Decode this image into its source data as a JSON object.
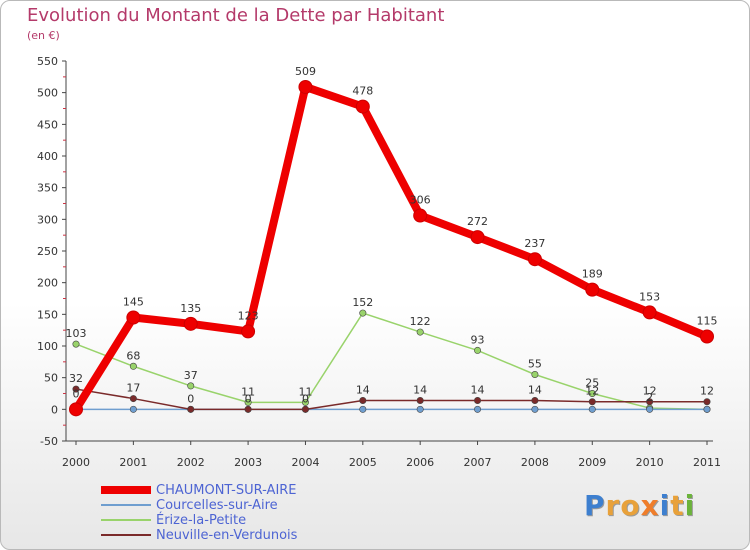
{
  "title": "Evolution du Montant de la Dette par Habitant",
  "subtitle": "(en €)",
  "logo": {
    "text": "Proxiti",
    "letter_colors": [
      "#3d7fcf",
      "#e8a13a",
      "#e8a13a",
      "#ef7d2a",
      "#3d7fcf",
      "#e8a13a",
      "#6bb33a"
    ]
  },
  "chart_data": {
    "type": "line",
    "x": [
      "2000",
      "2001",
      "2002",
      "2003",
      "2004",
      "2005",
      "2006",
      "2007",
      "2008",
      "2009",
      "2010",
      "2011"
    ],
    "ylim": [
      -50,
      550
    ],
    "yticks": [
      "-50",
      "0",
      "50",
      "100",
      "150",
      "200",
      "250",
      "300",
      "350",
      "400",
      "450",
      "500",
      "550"
    ],
    "grid": false,
    "legend_position": "bottom-left",
    "series": [
      {
        "name": "CHAUMONT-SUR-AIRE",
        "color": "#ee0000",
        "values": [
          0,
          145,
          135,
          123,
          509,
          478,
          306,
          272,
          237,
          189,
          153,
          115
        ],
        "labels": [
          "0",
          "145",
          "135",
          "123",
          "509",
          "478",
          "306",
          "272",
          "237",
          "189",
          "153",
          "115"
        ]
      },
      {
        "name": "Courcelles-sur-Aire",
        "color": "#6f9ecf",
        "values": [
          0,
          0,
          0,
          0,
          0,
          0,
          0,
          0,
          0,
          0,
          0,
          0
        ],
        "labels": []
      },
      {
        "name": "Érize-la-Petite",
        "color": "#99d36b",
        "values": [
          103,
          68,
          37,
          11,
          11,
          152,
          122,
          93,
          55,
          25,
          2,
          0
        ],
        "labels": [
          "103",
          "68",
          "37",
          "11",
          "11",
          "152",
          "122",
          "93",
          "55",
          "25",
          "2",
          ""
        ]
      },
      {
        "name": "Neuville-en-Verdunois",
        "color": "#7a2a2a",
        "values": [
          32,
          17,
          0,
          0,
          0,
          14,
          14,
          14,
          14,
          12,
          12,
          12
        ],
        "labels": [
          "32",
          "17",
          "0",
          "0",
          "0",
          "14",
          "14",
          "14",
          "14",
          "12",
          "12",
          "12"
        ]
      }
    ]
  }
}
